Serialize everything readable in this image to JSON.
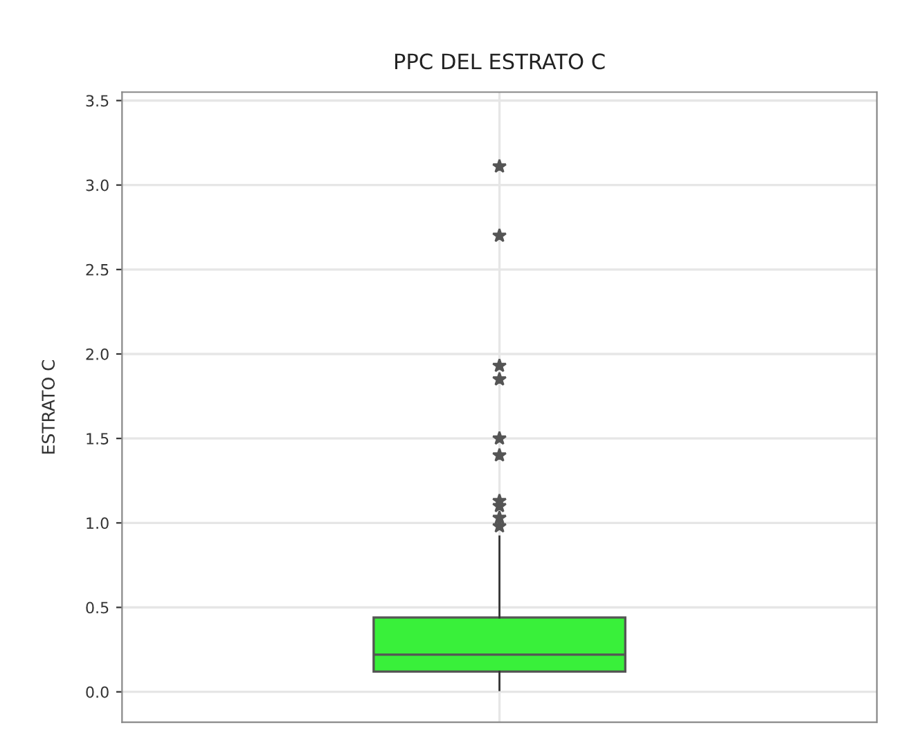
{
  "chart_data": {
    "type": "box",
    "title": "PPC DEL ESTRATO C",
    "ylabel": "ESTRATO C",
    "categories": [
      null
    ],
    "boxes": [
      {
        "low": 0.01,
        "q1": 0.12,
        "median": 0.22,
        "q3": 0.44,
        "high": 0.92,
        "outliers": [
          3.11,
          2.7,
          1.93,
          1.85,
          1.5,
          1.4,
          1.13,
          1.1,
          1.03,
          0.98
        ]
      }
    ],
    "color": "#39f03a",
    "marker": "star",
    "grid": true,
    "ylim": [
      -0.18,
      3.55
    ],
    "yticks": [
      {
        "value": 0,
        "label": "0.0"
      },
      0.5,
      {
        "value": 1,
        "label": "1.0"
      },
      1.5,
      {
        "value": 2,
        "label": "2.0"
      },
      2.5,
      {
        "value": 3,
        "label": "3.0"
      },
      3.5
    ]
  }
}
